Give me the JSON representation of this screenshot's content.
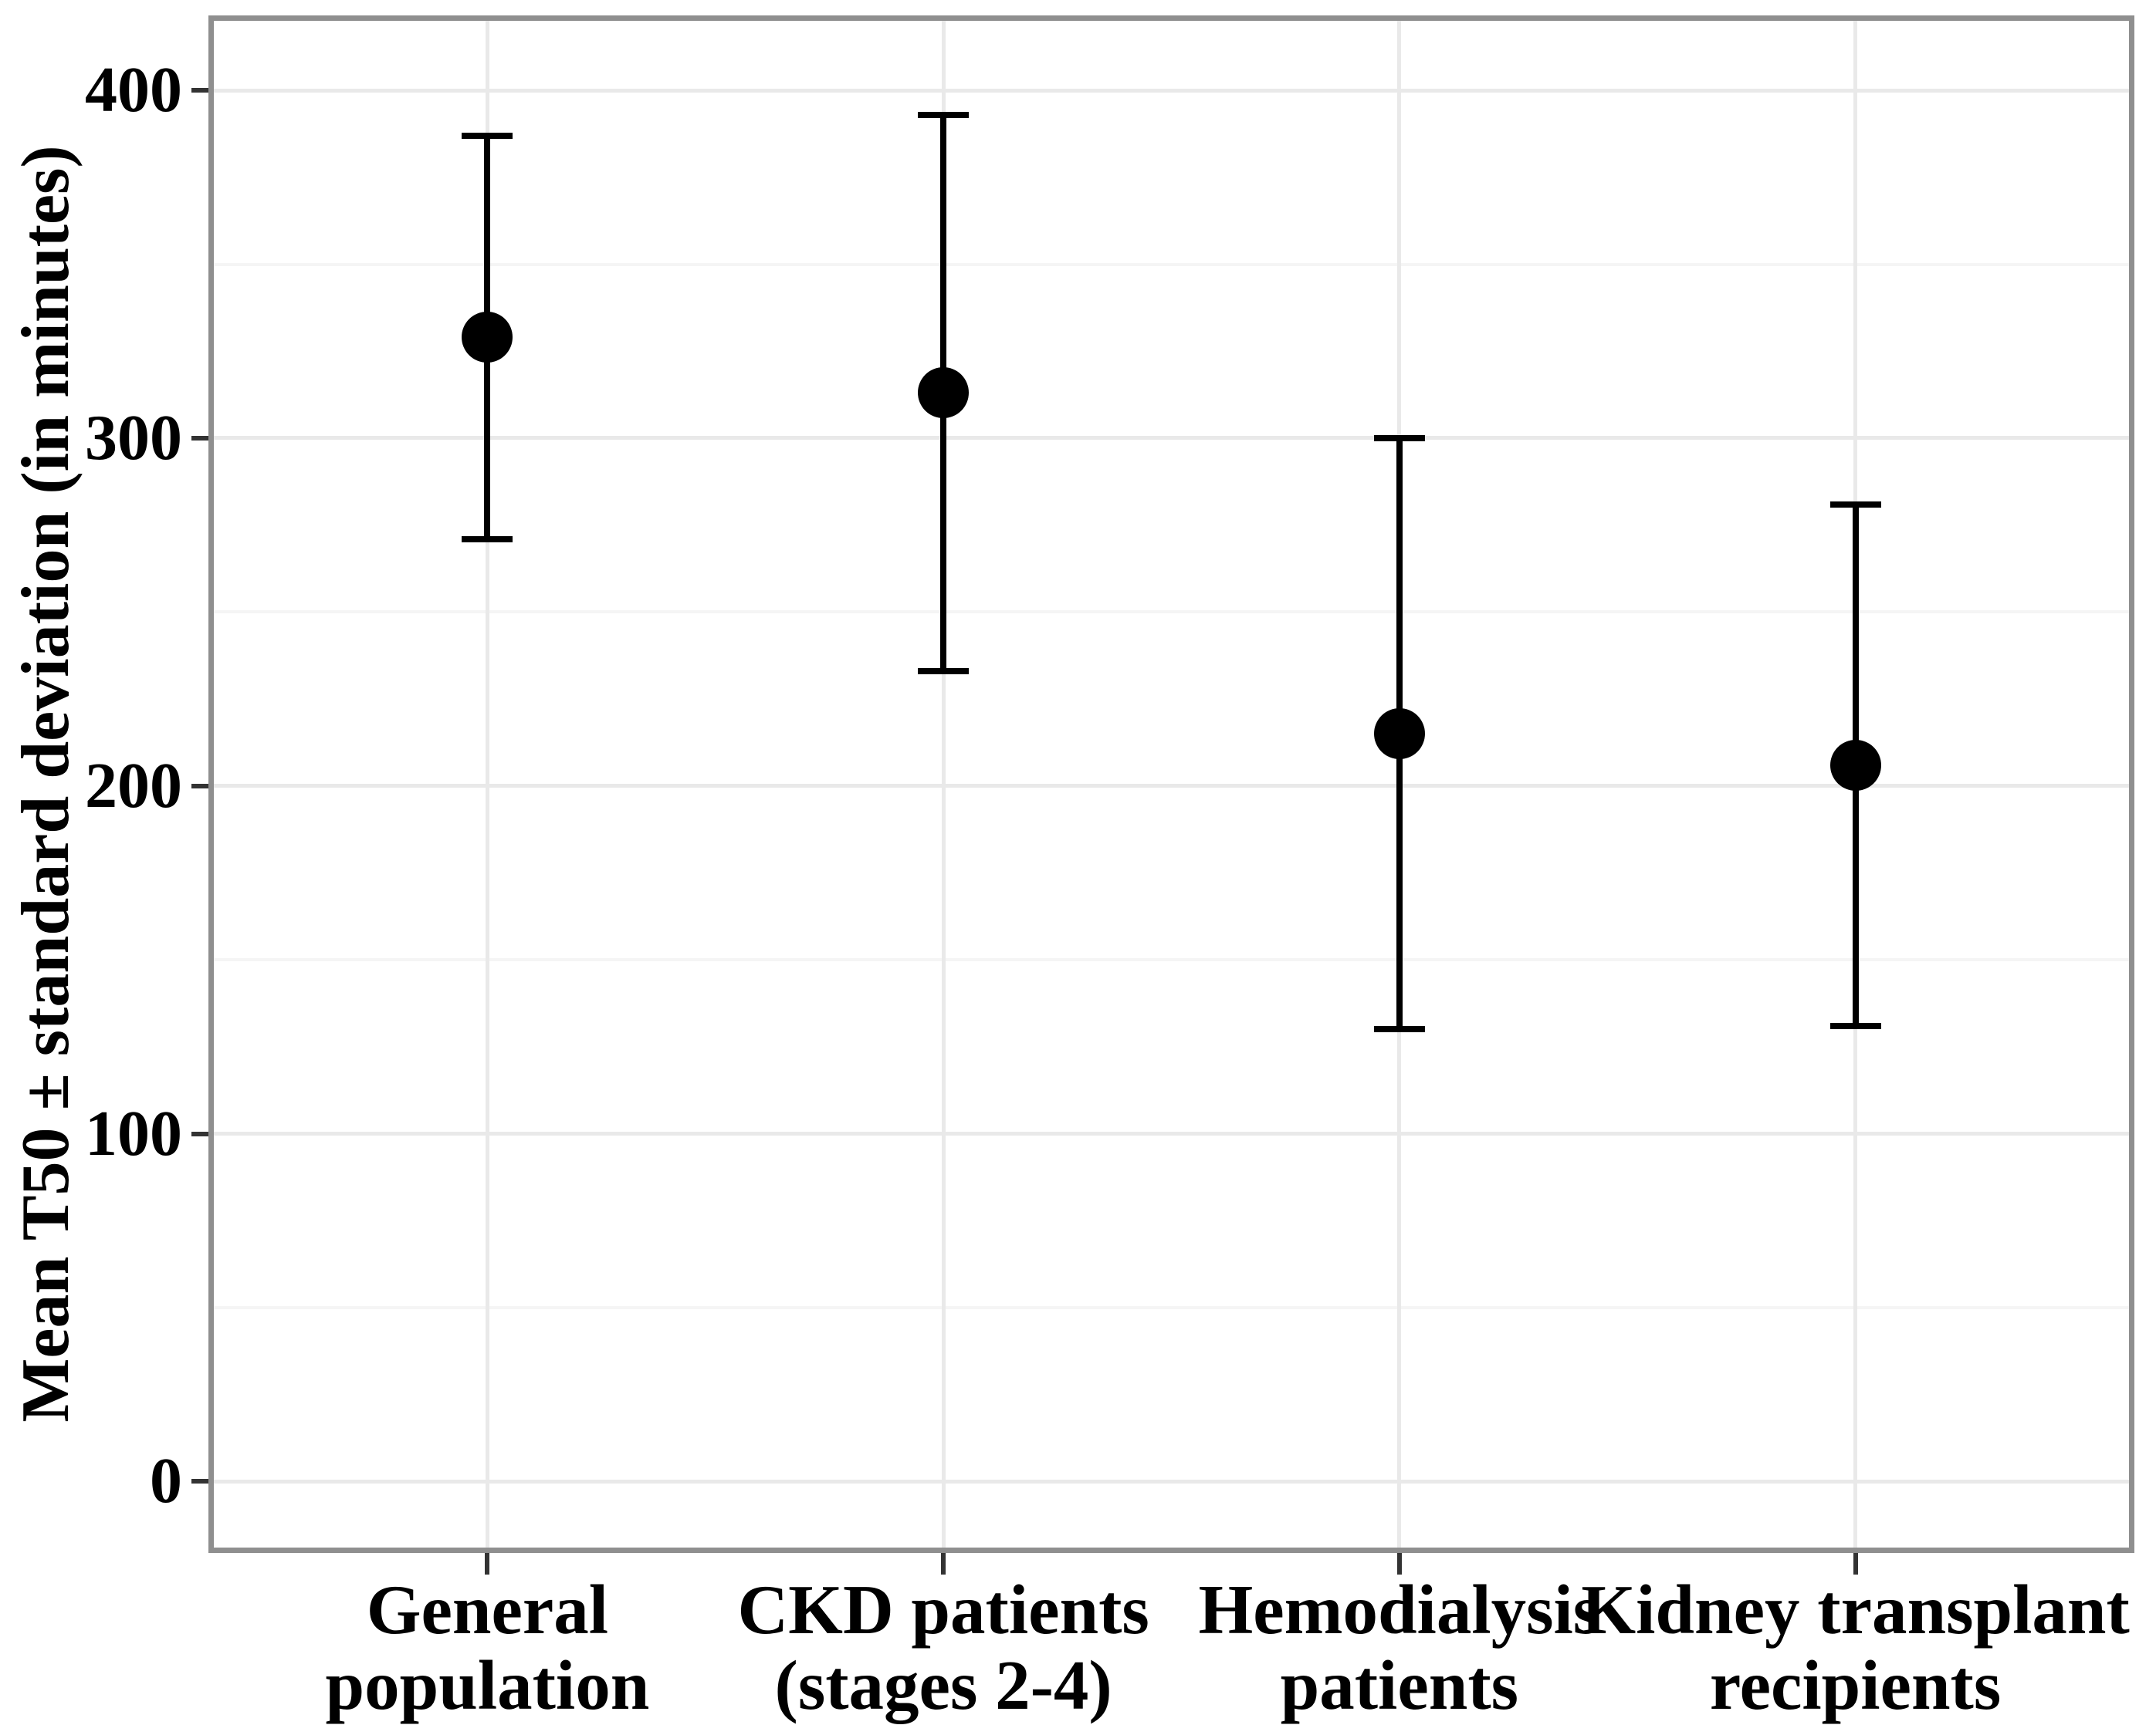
{
  "chart_data": {
    "type": "scatter",
    "title": "",
    "xlabel": "",
    "ylabel": "Mean T50 ± standard deviation (in minutes)",
    "categories": [
      "General population",
      "CKD patients (stages 2-4)",
      "Hemodialysis patients",
      "Kidney transplant recipients"
    ],
    "category_label_lines": [
      [
        "General",
        "population"
      ],
      [
        "CKD patients",
        "(stages 2-4)"
      ],
      [
        "Hemodialysis",
        "patients"
      ],
      [
        "Kidney transplant",
        "recipients"
      ]
    ],
    "series": [
      {
        "name": "Mean T50 ± standard deviation",
        "means": [
          329,
          313,
          215,
          206
        ],
        "sd": [
          58,
          80,
          85,
          75
        ],
        "upper": [
          387,
          393,
          300,
          281
        ],
        "lower": [
          271,
          233,
          130,
          131
        ]
      }
    ],
    "yticks": [
      0,
      100,
      200,
      300,
      400
    ],
    "ytick_labels": [
      "0",
      "100",
      "200",
      "300",
      "400"
    ],
    "ylim": [
      -19,
      420
    ],
    "minor_ticks": [
      50,
      150,
      250,
      350
    ],
    "grid": {
      "major": true,
      "minor": true,
      "vertical_at_categories": true
    },
    "legend": "none",
    "marker": "filled-circle",
    "error_bar_meaning": "mean ± standard deviation"
  },
  "colors": {
    "background": "#ffffff",
    "panel_background": "#ffffff",
    "panel_border": "#8f8f8f",
    "grid_major": "#e9e9e9",
    "grid_minor": "#f5f5f5",
    "point": "#000000",
    "error_bar": "#000000",
    "tick": "#333333",
    "text": "#000000"
  }
}
